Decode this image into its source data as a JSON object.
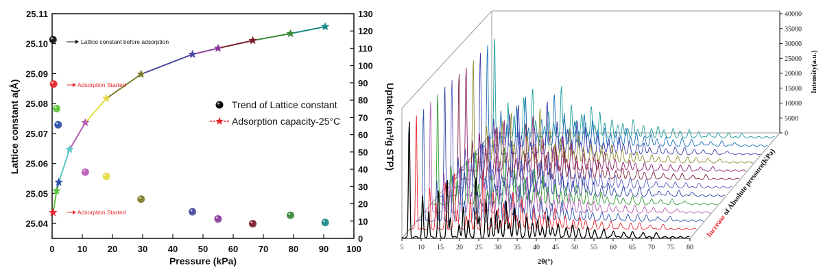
{
  "chart_data": [
    {
      "type": "scatter",
      "xlabel": "Pressure (kPa)",
      "ylabel": "Lattice constant a(Å)",
      "y2label": "Uptake (cm³/g STP)",
      "xlim": [
        0,
        100
      ],
      "ylim": [
        25.035,
        25.11
      ],
      "y2lim": [
        0,
        130
      ],
      "xticks": [
        0,
        10,
        20,
        30,
        40,
        50,
        60,
        70,
        80,
        90,
        100
      ],
      "yticks": [
        "25.04",
        "25.05",
        "25.06",
        "25.07",
        "25.08",
        "25.09",
        "25.10",
        "25.11"
      ],
      "y2ticks": [
        0,
        10,
        20,
        30,
        40,
        50,
        60,
        70,
        80,
        90,
        100,
        110,
        120,
        130
      ],
      "legend": {
        "position": "center-right",
        "entries": [
          "Trend of Lattice constant",
          "Adsorption capacity-25°C"
        ]
      },
      "annotations": [
        "Lattice constant  before adsorption",
        "Adsorption Started",
        "Adsorption Started"
      ],
      "series": [
        {
          "name": "Trend of Lattice constant",
          "axis": "left",
          "points": [
            {
              "x": 0.3,
              "y": 25.1013,
              "color": "#111111"
            },
            {
              "x": 0.5,
              "y": 25.0865,
              "color": "#e8242a"
            },
            {
              "x": 1.5,
              "y": 25.0783,
              "color": "#5cc23a"
            },
            {
              "x": 2.0,
              "y": 25.0729,
              "color": "#2c4fa8"
            },
            {
              "x": 11.0,
              "y": 25.0571,
              "color": "#b75ab4"
            },
            {
              "x": 18.0,
              "y": 25.0557,
              "color": "#e6dd43"
            },
            {
              "x": 29.5,
              "y": 25.0481,
              "color": "#7d7a2c"
            },
            {
              "x": 46.5,
              "y": 25.0439,
              "color": "#4a4aa0"
            },
            {
              "x": 55.0,
              "y": 25.0415,
              "color": "#8a3a9a"
            },
            {
              "x": 66.5,
              "y": 25.0399,
              "color": "#7a1a2a"
            },
            {
              "x": 79.0,
              "y": 25.0427,
              "color": "#3a8a3a"
            },
            {
              "x": 90.5,
              "y": 25.0403,
              "color": "#1a8a8a"
            }
          ]
        },
        {
          "name": "Adsorption capacity-25°C",
          "axis": "right",
          "points": [
            {
              "x": 0.3,
              "y": 15.0,
              "color": "#e8242a"
            },
            {
              "x": 1.5,
              "y": 27.5,
              "color": "#5cc23a"
            },
            {
              "x": 2.2,
              "y": 32.5,
              "color": "#2c4fa8"
            },
            {
              "x": 5.8,
              "y": 51.5,
              "color": "#5ac8c8"
            },
            {
              "x": 11.0,
              "y": 67.0,
              "color": "#b75ab4"
            },
            {
              "x": 18.0,
              "y": 81.0,
              "color": "#e6dd43"
            },
            {
              "x": 29.5,
              "y": 95.0,
              "color": "#7d7a2c"
            },
            {
              "x": 46.5,
              "y": 106.5,
              "color": "#4a4aa0"
            },
            {
              "x": 55.0,
              "y": 110.0,
              "color": "#8a3a9a"
            },
            {
              "x": 66.5,
              "y": 114.5,
              "color": "#7a1a2a"
            },
            {
              "x": 79.0,
              "y": 118.5,
              "color": "#3a8a3a"
            },
            {
              "x": 90.5,
              "y": 122.5,
              "color": "#1a8a8a"
            }
          ]
        }
      ]
    },
    {
      "type": "line",
      "xlabel": "2θ(°)",
      "zlabel": "Intensity(a.u.)",
      "depth_label_highlight": "Increase",
      "depth_label_rest": " of Absolute pressure(KPa)",
      "xlim": [
        5,
        80
      ],
      "xticks": [
        5,
        10,
        15,
        20,
        25,
        30,
        35,
        40,
        45,
        50,
        55,
        60,
        65,
        70,
        75,
        80
      ],
      "zlim": [
        0,
        40000
      ],
      "zticks": [
        0,
        5000,
        10000,
        15000,
        20000,
        25000,
        30000,
        35000,
        40000
      ],
      "peaks_2theta": [
        6.9,
        10.4,
        12.0,
        14.5,
        16.8,
        17.6,
        19.9,
        21.0,
        22.3,
        24.3,
        25.1,
        26.9,
        28.2,
        29.6,
        30.6,
        32.1,
        33.0,
        34.3,
        35.6,
        37.5,
        39.0,
        40.3,
        41.6,
        43.0,
        44.2,
        45.7,
        47.8,
        49.5,
        51.0,
        53.4,
        55.2,
        57.6,
        60.1,
        62.7,
        65.0,
        67.9,
        71.2
      ],
      "series": [
        {
          "color": "#000000"
        },
        {
          "color": "#e8242a"
        },
        {
          "color": "#2c4fa8"
        },
        {
          "color": "#b75ab4"
        },
        {
          "color": "#2e9a2e"
        },
        {
          "color": "#2c3fa0"
        },
        {
          "color": "#5a5ac0"
        },
        {
          "color": "#7d1e3a"
        },
        {
          "color": "#8a1f6a"
        },
        {
          "color": "#8e8a2a"
        },
        {
          "color": "#3a3aaa"
        },
        {
          "color": "#1a6fb5"
        },
        {
          "color": "#1a9a9a"
        }
      ]
    }
  ]
}
